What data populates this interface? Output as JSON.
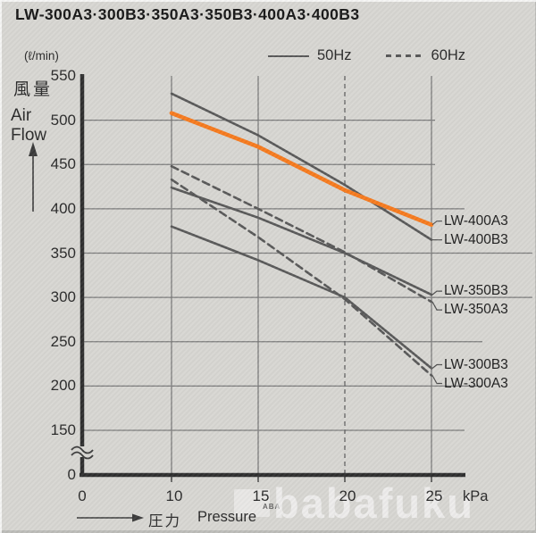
{
  "title": "LW-300A3·300B3·350A3·350B3·400A3·400B3",
  "legend": {
    "hz50": "50Hz",
    "hz60": "60Hz"
  },
  "y_axis": {
    "unit": "(ℓ/min)",
    "label_jp": "風量",
    "label_en_line1": "Air",
    "label_en_line2": "Flow",
    "ticks": [
      "550",
      "500",
      "450",
      "400",
      "350",
      "300",
      "250",
      "200",
      "150",
      "0"
    ]
  },
  "x_axis": {
    "ticks": [
      "0",
      "10",
      "15",
      "20",
      "25"
    ],
    "unit": "kPa",
    "label_jp": "圧力",
    "label_en": "Pressure"
  },
  "watermark": {
    "logo": "ABA",
    "text": "babafuku"
  },
  "colors": {
    "background": "#d7d6d2",
    "highlight": "#f67a1e",
    "line": "#585858",
    "grid": "#7b7b7b",
    "axis": "#2e2e2e"
  },
  "chart_data": {
    "type": "line",
    "x": [
      10,
      15,
      20,
      25
    ],
    "x_unit": "kPa",
    "y_unit": "ℓ/min",
    "xlabel": "圧力 Pressure",
    "ylabel": "風量 Air Flow",
    "ylim": [
      0,
      550
    ],
    "y_axis_break_between": [
      0,
      150
    ],
    "grid": true,
    "legend_position": "top",
    "legend_map": {
      "solid": "50Hz",
      "dashed": "60Hz"
    },
    "series": [
      {
        "name": "LW-400B3",
        "style": "solid",
        "color": "#585858",
        "highlighted": false,
        "values": [
          530,
          483,
          427,
          365
        ]
      },
      {
        "name": "LW-400A3",
        "style": "solid",
        "color": "#f67a1e",
        "highlighted": true,
        "values": [
          508,
          470,
          421,
          382
        ]
      },
      {
        "name": "LW-350A3",
        "style": "dashed",
        "color": "#585858",
        "highlighted": false,
        "values": [
          448,
          400,
          351,
          295
        ]
      },
      {
        "name": "LW-350B3",
        "style": "solid",
        "color": "#585858",
        "highlighted": false,
        "values": [
          424,
          390,
          350,
          303
        ]
      },
      {
        "name": "LW-300A3",
        "style": "dashed",
        "color": "#585858",
        "highlighted": false,
        "values": [
          433,
          368,
          298,
          212
        ]
      },
      {
        "name": "LW-300B3",
        "style": "solid",
        "color": "#585858",
        "highlighted": false,
        "values": [
          380,
          342,
          300,
          220
        ]
      }
    ]
  }
}
